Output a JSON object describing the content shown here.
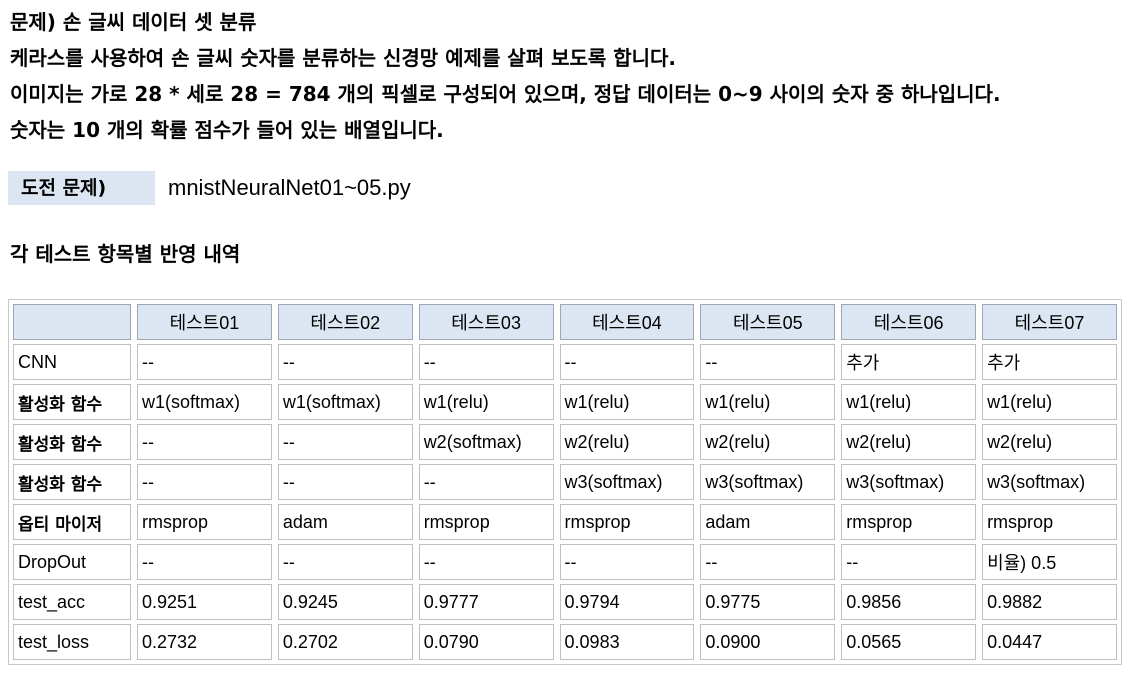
{
  "intro": {
    "lines": [
      "문제) 손 글씨 데이터 셋 분류",
      "케라스를 사용하여 손 글씨 숫자를 분류하는 신경망 예제를 살펴 보도록 합니다.",
      "이미지는 가로 28 * 세로 28 = 784 개의 픽셀로 구성되어 있으며, 정답 데이터는 0~9 사이의 숫자 중 하나입니다.",
      "숫자는 10 개의 확률 점수가 들어 있는 배열입니다."
    ]
  },
  "challenge": {
    "label": "도전 문제)",
    "value": "mnistNeuralNet01~05.py"
  },
  "section_heading": "각 테스트 항목별 반영 내역",
  "table": {
    "columns": [
      "",
      "테스트01",
      "테스트02",
      "테스트03",
      "테스트04",
      "테스트05",
      "테스트06",
      "테스트07"
    ],
    "rows": [
      {
        "label": "CNN",
        "cells": [
          "--",
          "--",
          "--",
          "--",
          "--",
          "추가",
          "추가"
        ]
      },
      {
        "label": "활성화 함수",
        "cells": [
          "w1(softmax)",
          "w1(softmax)",
          "w1(relu)",
          "w1(relu)",
          "w1(relu)",
          "w1(relu)",
          "w1(relu)"
        ]
      },
      {
        "label": "활성화 함수",
        "cells": [
          "--",
          "--",
          "w2(softmax)",
          "w2(relu)",
          "w2(relu)",
          "w2(relu)",
          "w2(relu)"
        ]
      },
      {
        "label": "활성화 함수",
        "cells": [
          "--",
          "--",
          "--",
          "w3(softmax)",
          "w3(softmax)",
          "w3(softmax)",
          "w3(softmax)"
        ]
      },
      {
        "label": "옵티 마이저",
        "cells": [
          "rmsprop",
          "adam",
          "rmsprop",
          "rmsprop",
          "adam",
          "rmsprop",
          "rmsprop"
        ]
      },
      {
        "label": "DropOut",
        "cells": [
          "--",
          "--",
          "--",
          "--",
          "--",
          "--",
          "비율) 0.5"
        ]
      },
      {
        "label": "test_acc",
        "cells": [
          "0.9251",
          "0.9245",
          "0.9777",
          "0.9794",
          "0.9775",
          "0.9856",
          "0.9882"
        ]
      },
      {
        "label": "test_loss",
        "cells": [
          "0.2732",
          "0.2702",
          "0.0790",
          "0.0983",
          "0.0900",
          "0.0565",
          "0.0447"
        ]
      }
    ]
  }
}
